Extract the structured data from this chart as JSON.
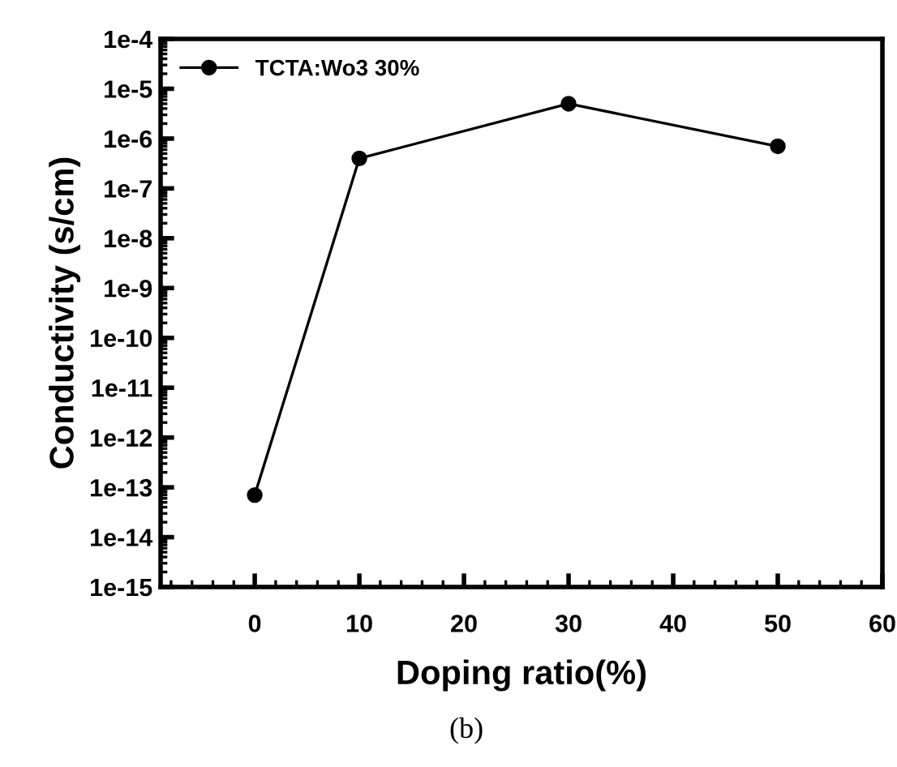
{
  "chart_data": {
    "type": "line",
    "xlabel": "Doping ratio(%)",
    "ylabel": "Conductivity (s/cm)",
    "x": [
      0,
      10,
      30,
      50
    ],
    "series": [
      {
        "name": "TCTA:Wo3 30%",
        "color": "#000000",
        "values": [
          7e-14,
          4e-07,
          5e-06,
          7e-07
        ]
      }
    ],
    "log": "y",
    "xlim": [
      -9,
      60
    ],
    "xticks": [
      0,
      10,
      20,
      30,
      40,
      50,
      60
    ],
    "ylim": [
      1e-15,
      0.0001
    ],
    "yticks": [
      {
        "value": 1e-15,
        "label": "1e-15"
      },
      {
        "value": 1e-14,
        "label": "1e-14"
      },
      {
        "value": 1e-13,
        "label": "1e-13"
      },
      {
        "value": 1e-12,
        "label": "1e-12"
      },
      {
        "value": 1e-11,
        "label": "1e-11"
      },
      {
        "value": 1e-10,
        "label": "1e-10"
      },
      {
        "value": 1e-09,
        "label": "1e-9"
      },
      {
        "value": 1e-08,
        "label": "1e-8"
      },
      {
        "value": 1e-07,
        "label": "1e-7"
      },
      {
        "value": 1e-06,
        "label": "1e-6"
      },
      {
        "value": 1e-05,
        "label": "1e-5"
      },
      {
        "value": 0.0001,
        "label": "1e-4"
      }
    ],
    "grid": false,
    "legend": "top left",
    "marker": "circle",
    "line_style": "solid",
    "annotations": [
      "(b)"
    ]
  }
}
